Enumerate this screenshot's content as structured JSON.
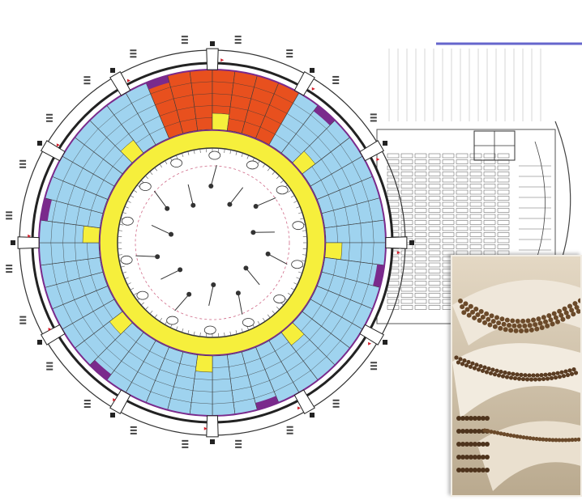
{
  "colors": {
    "blue_zone": "#9fd3ef",
    "yellow_zone": "#f6ef3c",
    "orange_zone": "#e8501e",
    "purple_border": "#7a2a8c",
    "line": "#3a3a3a",
    "accent_bar": "#6666cc",
    "model_base": "#d6cab6"
  },
  "plan": {
    "sectors": 48,
    "orange_sector_range": [
      5,
      11
    ],
    "entrance_gates": 12,
    "inner_columns": 14
  }
}
